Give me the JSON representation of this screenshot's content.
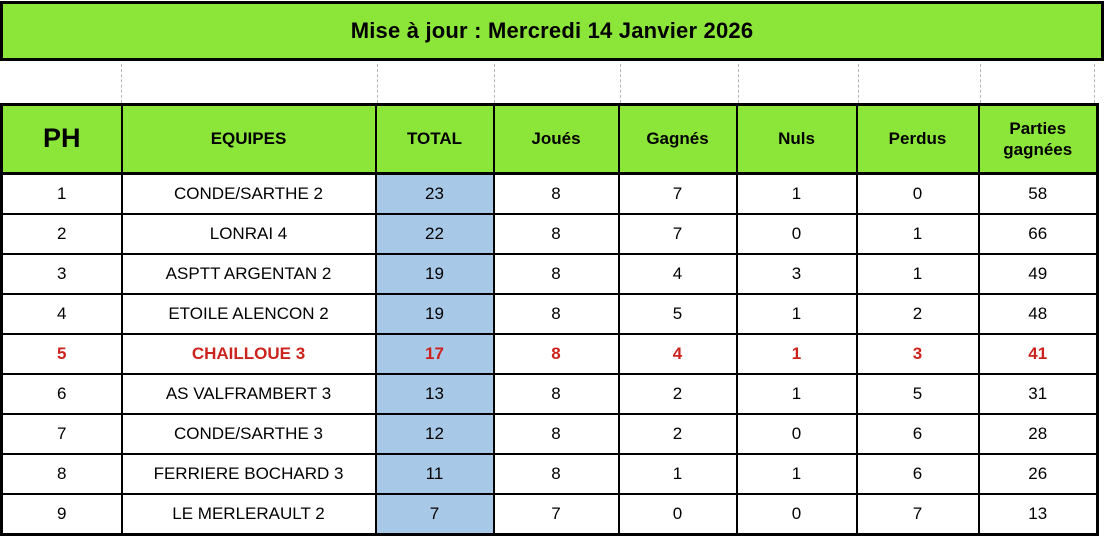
{
  "banner": {
    "text": "Mise à jour : Mercredi 14 Janvier 2026"
  },
  "table": {
    "headers": [
      "PH",
      "EQUIPES",
      "TOTAL",
      "Joués",
      "Gagnés",
      "Nuls",
      "Perdus",
      "Parties gagnées"
    ],
    "rows": [
      {
        "highlight": false,
        "c": [
          "1",
          "CONDE/SARTHE 2",
          "23",
          "8",
          "7",
          "1",
          "0",
          "58"
        ]
      },
      {
        "highlight": false,
        "c": [
          "2",
          "LONRAI 4",
          "22",
          "8",
          "7",
          "0",
          "1",
          "66"
        ]
      },
      {
        "highlight": false,
        "c": [
          "3",
          "ASPTT ARGENTAN 2",
          "19",
          "8",
          "4",
          "3",
          "1",
          "49"
        ]
      },
      {
        "highlight": false,
        "c": [
          "4",
          "ETOILE ALENCON 2",
          "19",
          "8",
          "5",
          "1",
          "2",
          "48"
        ]
      },
      {
        "highlight": true,
        "c": [
          "5",
          "CHAILLOUE 3",
          "17",
          "8",
          "4",
          "1",
          "3",
          "41"
        ]
      },
      {
        "highlight": false,
        "c": [
          "6",
          "AS VALFRAMBERT 3",
          "13",
          "8",
          "2",
          "1",
          "5",
          "31"
        ]
      },
      {
        "highlight": false,
        "c": [
          "7",
          "CONDE/SARTHE 3",
          "12",
          "8",
          "2",
          "0",
          "6",
          "28"
        ]
      },
      {
        "highlight": false,
        "c": [
          "8",
          "FERRIERE BOCHARD 3",
          "11",
          "8",
          "1",
          "1",
          "6",
          "26"
        ]
      },
      {
        "highlight": false,
        "c": [
          "9",
          "LE MERLERAULT 2",
          "7",
          "7",
          "0",
          "0",
          "7",
          "13"
        ]
      }
    ]
  },
  "colors": {
    "green": "#8CE63A",
    "total_blue": "#A8C8E8",
    "highlight_red": "#CC231E"
  }
}
